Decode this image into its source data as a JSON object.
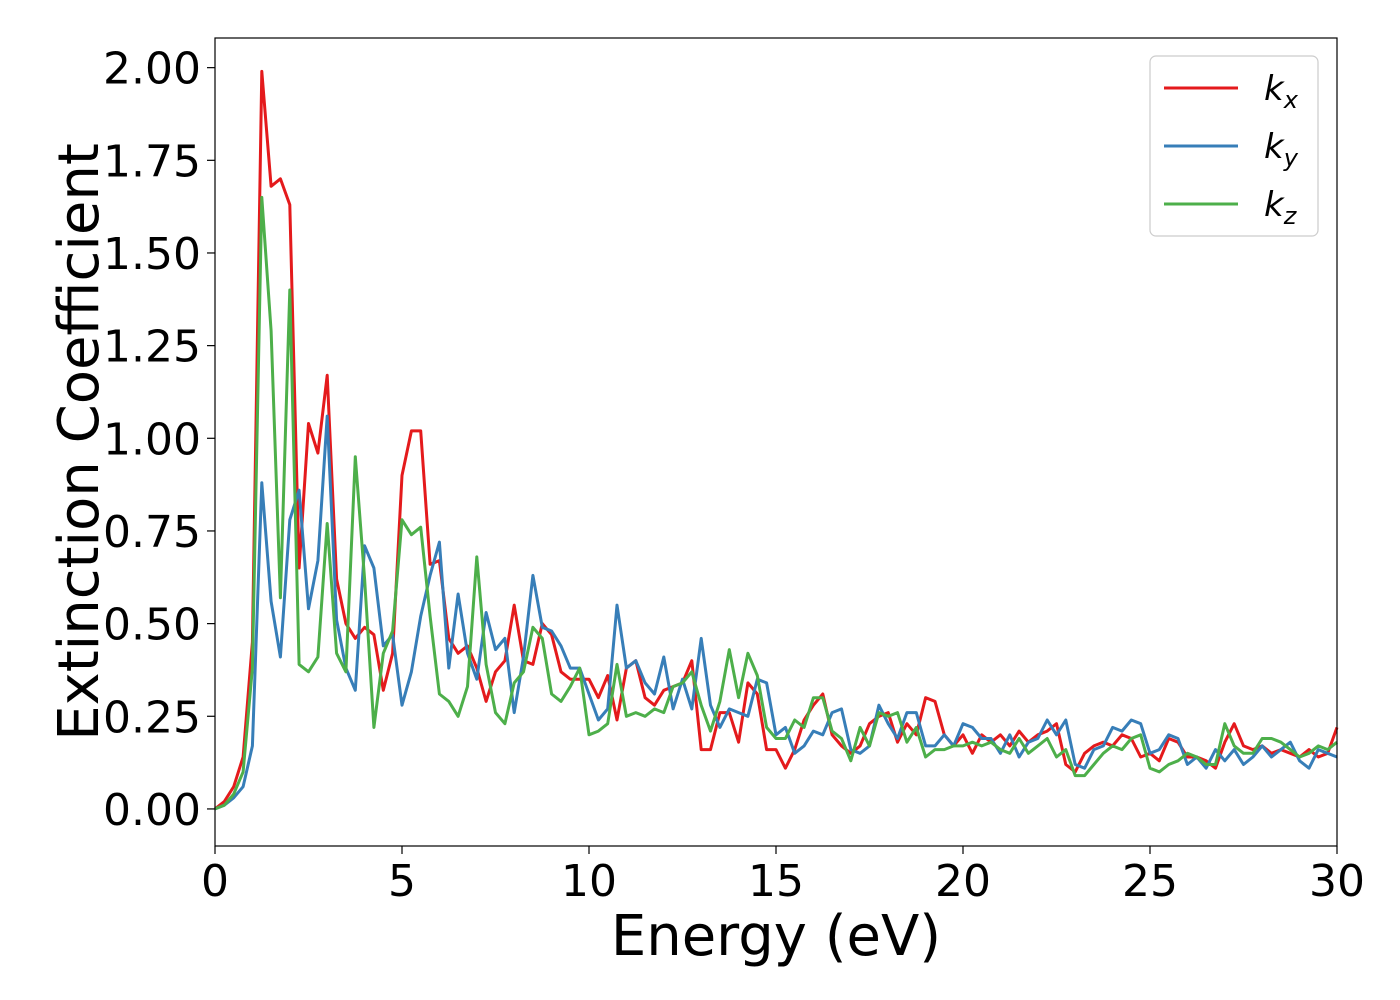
{
  "chart_data": {
    "type": "line",
    "title": "",
    "xlabel": "Energy (eV)",
    "ylabel": "Extinction Coefficient",
    "xlim": [
      0,
      30
    ],
    "ylim": [
      -0.1,
      2.08
    ],
    "xticks": [
      0,
      5,
      10,
      15,
      20,
      25,
      30
    ],
    "xtick_labels": [
      "0",
      "5",
      "10",
      "15",
      "20",
      "25",
      "30"
    ],
    "yticks": [
      0,
      0.25,
      0.5,
      0.75,
      1.0,
      1.25,
      1.5,
      1.75,
      2.0
    ],
    "ytick_labels": [
      "0.00",
      "0.25",
      "0.50",
      "0.75",
      "1.00",
      "1.25",
      "1.50",
      "1.75",
      "2.00"
    ],
    "grid": false,
    "legend_position": "top-right",
    "x": [
      0,
      0.25,
      0.5,
      0.75,
      1.0,
      1.25,
      1.5,
      1.75,
      2.0,
      2.25,
      2.5,
      2.75,
      3.0,
      3.25,
      3.5,
      3.75,
      4.0,
      4.25,
      4.5,
      4.75,
      5.0,
      5.25,
      5.5,
      5.75,
      6.0,
      6.25,
      6.5,
      6.75,
      7.0,
      7.25,
      7.5,
      7.75,
      8.0,
      8.25,
      8.5,
      8.75,
      9.0,
      9.25,
      9.5,
      9.75,
      10.0,
      10.25,
      10.5,
      10.75,
      11.0,
      11.25,
      11.5,
      11.75,
      12.0,
      12.25,
      12.5,
      12.75,
      13.0,
      13.25,
      13.5,
      13.75,
      14.0,
      14.25,
      14.5,
      14.75,
      15.0,
      15.25,
      15.5,
      15.75,
      16.0,
      16.25,
      16.5,
      16.75,
      17.0,
      17.25,
      17.5,
      17.75,
      18.0,
      18.25,
      18.5,
      18.75,
      19.0,
      19.25,
      19.5,
      19.75,
      20.0,
      20.25,
      20.5,
      20.75,
      21.0,
      21.25,
      21.5,
      21.75,
      22.0,
      22.25,
      22.5,
      22.75,
      23.0,
      23.25,
      23.5,
      23.75,
      24.0,
      24.25,
      24.5,
      24.75,
      25.0,
      25.25,
      25.5,
      25.75,
      26.0,
      26.25,
      26.5,
      26.75,
      27.0,
      27.25,
      27.5,
      27.75,
      28.0,
      28.25,
      28.5,
      28.75,
      29.0,
      29.25,
      29.5,
      29.75,
      30.0
    ],
    "series": [
      {
        "name": "k_x",
        "label_main": "k",
        "label_sub": "x",
        "color": "#e41a1c",
        "values": [
          0.0,
          0.02,
          0.06,
          0.14,
          0.45,
          1.99,
          1.68,
          1.7,
          1.63,
          0.65,
          1.04,
          0.96,
          1.17,
          0.62,
          0.5,
          0.46,
          0.49,
          0.47,
          0.32,
          0.42,
          0.9,
          1.02,
          1.02,
          0.66,
          0.67,
          0.46,
          0.42,
          0.44,
          0.38,
          0.29,
          0.37,
          0.4,
          0.55,
          0.4,
          0.39,
          0.5,
          0.47,
          0.37,
          0.35,
          0.35,
          0.35,
          0.3,
          0.36,
          0.24,
          0.38,
          0.4,
          0.3,
          0.28,
          0.32,
          0.33,
          0.34,
          0.4,
          0.16,
          0.16,
          0.26,
          0.26,
          0.18,
          0.34,
          0.31,
          0.16,
          0.16,
          0.11,
          0.16,
          0.24,
          0.28,
          0.31,
          0.2,
          0.17,
          0.15,
          0.17,
          0.23,
          0.25,
          0.26,
          0.18,
          0.23,
          0.2,
          0.3,
          0.29,
          0.2,
          0.17,
          0.2,
          0.15,
          0.2,
          0.18,
          0.2,
          0.17,
          0.21,
          0.18,
          0.2,
          0.21,
          0.23,
          0.12,
          0.1,
          0.15,
          0.17,
          0.18,
          0.17,
          0.2,
          0.19,
          0.14,
          0.15,
          0.13,
          0.19,
          0.18,
          0.14,
          0.14,
          0.13,
          0.11,
          0.18,
          0.23,
          0.17,
          0.16,
          0.17,
          0.15,
          0.16,
          0.15,
          0.14,
          0.16,
          0.14,
          0.15,
          0.22
        ]
      },
      {
        "name": "k_y",
        "label_main": "k",
        "label_sub": "y",
        "color": "#377eb8",
        "values": [
          0.0,
          0.01,
          0.03,
          0.06,
          0.17,
          0.88,
          0.56,
          0.41,
          0.78,
          0.86,
          0.54,
          0.67,
          1.06,
          0.51,
          0.38,
          0.32,
          0.71,
          0.65,
          0.44,
          0.47,
          0.28,
          0.37,
          0.52,
          0.63,
          0.72,
          0.38,
          0.58,
          0.42,
          0.35,
          0.53,
          0.43,
          0.46,
          0.26,
          0.41,
          0.63,
          0.49,
          0.48,
          0.44,
          0.38,
          0.38,
          0.31,
          0.24,
          0.27,
          0.55,
          0.38,
          0.4,
          0.34,
          0.31,
          0.41,
          0.27,
          0.35,
          0.27,
          0.46,
          0.28,
          0.22,
          0.27,
          0.26,
          0.25,
          0.35,
          0.34,
          0.2,
          0.22,
          0.15,
          0.17,
          0.21,
          0.2,
          0.26,
          0.27,
          0.16,
          0.15,
          0.17,
          0.28,
          0.23,
          0.19,
          0.26,
          0.26,
          0.17,
          0.17,
          0.2,
          0.17,
          0.23,
          0.22,
          0.19,
          0.19,
          0.15,
          0.2,
          0.14,
          0.18,
          0.19,
          0.24,
          0.2,
          0.24,
          0.12,
          0.11,
          0.16,
          0.17,
          0.22,
          0.21,
          0.24,
          0.23,
          0.15,
          0.16,
          0.2,
          0.19,
          0.12,
          0.14,
          0.11,
          0.16,
          0.13,
          0.16,
          0.12,
          0.14,
          0.17,
          0.14,
          0.16,
          0.18,
          0.13,
          0.11,
          0.16,
          0.15,
          0.14
        ]
      },
      {
        "name": "k_z",
        "label_main": "k",
        "label_sub": "z",
        "color": "#4daf4a",
        "values": [
          0.0,
          0.01,
          0.04,
          0.1,
          0.38,
          1.65,
          1.29,
          0.57,
          1.4,
          0.39,
          0.37,
          0.41,
          0.77,
          0.42,
          0.37,
          0.95,
          0.62,
          0.22,
          0.42,
          0.48,
          0.78,
          0.74,
          0.76,
          0.52,
          0.31,
          0.29,
          0.25,
          0.33,
          0.68,
          0.39,
          0.26,
          0.23,
          0.34,
          0.37,
          0.49,
          0.46,
          0.31,
          0.29,
          0.33,
          0.38,
          0.2,
          0.21,
          0.23,
          0.39,
          0.25,
          0.26,
          0.25,
          0.27,
          0.26,
          0.33,
          0.34,
          0.37,
          0.28,
          0.21,
          0.29,
          0.43,
          0.3,
          0.42,
          0.36,
          0.22,
          0.19,
          0.19,
          0.24,
          0.22,
          0.3,
          0.3,
          0.21,
          0.19,
          0.13,
          0.22,
          0.17,
          0.26,
          0.25,
          0.26,
          0.18,
          0.22,
          0.14,
          0.16,
          0.16,
          0.17,
          0.17,
          0.18,
          0.17,
          0.18,
          0.16,
          0.15,
          0.19,
          0.15,
          0.17,
          0.19,
          0.14,
          0.16,
          0.09,
          0.09,
          0.12,
          0.15,
          0.17,
          0.16,
          0.19,
          0.2,
          0.11,
          0.1,
          0.12,
          0.13,
          0.15,
          0.14,
          0.12,
          0.12,
          0.23,
          0.17,
          0.15,
          0.15,
          0.19,
          0.19,
          0.18,
          0.16,
          0.14,
          0.15,
          0.17,
          0.16,
          0.18
        ]
      }
    ]
  }
}
